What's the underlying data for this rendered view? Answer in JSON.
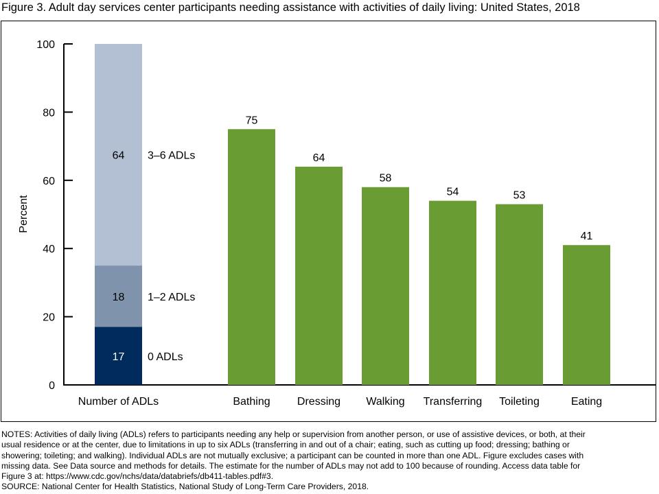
{
  "chart_data": {
    "type": "bar",
    "title": "Figure 3. Adult day services center participants needing assistance with activities of daily living: United States, 2018",
    "ylabel": "Percent",
    "ylim": [
      0,
      100
    ],
    "yticks": [
      0,
      20,
      40,
      60,
      80,
      100
    ],
    "grid": false,
    "stacked_bar": {
      "category": "Number of ADLs",
      "segments": [
        {
          "name": "0 ADLs",
          "value": 17,
          "color": "#002b5c",
          "label_color": "#ffffff"
        },
        {
          "name": "1–2 ADLs",
          "value": 18,
          "color": "#7f93ad",
          "label_color": "#000000"
        },
        {
          "name": "3–6 ADLs",
          "value": 64,
          "color": "#b3c0d3",
          "label_color": "#000000"
        }
      ]
    },
    "categories": [
      "Bathing",
      "Dressing",
      "Walking",
      "Transferring",
      "Toileting",
      "Eating"
    ],
    "values": [
      75,
      64,
      58,
      54,
      53,
      41
    ],
    "bar_color": "#6a9c34"
  },
  "notes": [
    "NOTES: Activities of daily living (ADLs) refers to participants needing any help or supervision from another person, or use of assistive devices, or both, at their",
    "usual residence or at the center, due to limitations in up to six ADLs (transferring in and out of a chair; eating, such as cutting up food; dressing; bathing or",
    "showering; toileting; and walking). Individual ADLs are not mutually exclusive; a participant can be counted in more than one ADL. Figure excludes cases with",
    "missing data. See Data source and methods for details. The estimate for the number of ADLs may not add to 100 because of rounding. Access data table for",
    "Figure 3 at: https://www.cdc.gov/nchs/data/databriefs/db411-tables.pdf#3."
  ],
  "source": "SOURCE: National Center for Health Statistics, National Study of Long-Term Care Providers, 2018."
}
